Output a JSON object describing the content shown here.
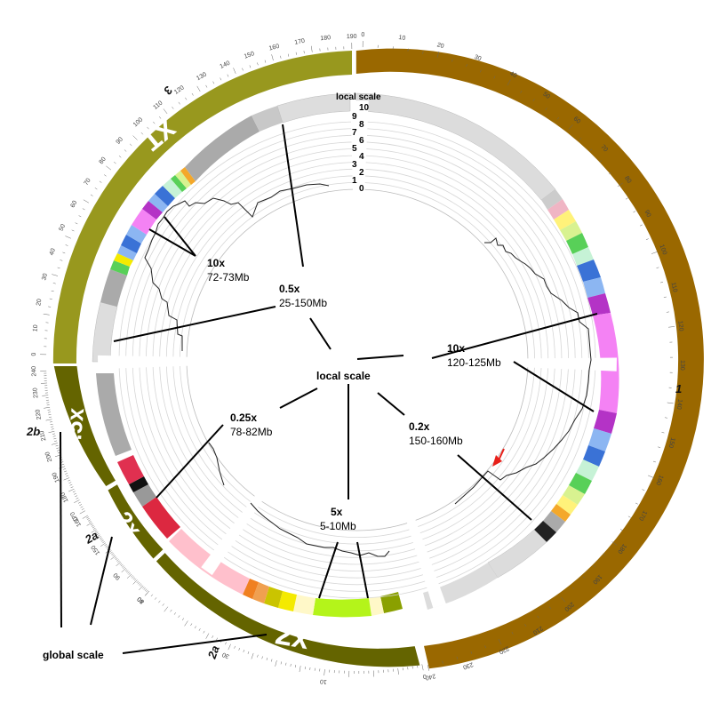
{
  "chromosomes": [
    {
      "id": "1",
      "label": "1"
    },
    {
      "id": "2a",
      "label": "2a"
    },
    {
      "id": "2b",
      "label": "2b"
    },
    {
      "id": "3",
      "label": "3"
    }
  ],
  "segments": [
    {
      "id": "chr1",
      "zoom_label": "1x",
      "color": "#9a6800",
      "chr_label": "1",
      "ticks": [
        "0",
        "10",
        "20",
        "30",
        "40",
        "50",
        "60",
        "70",
        "80",
        "90",
        "100",
        "110",
        "120",
        "130",
        "140",
        "150",
        "160",
        "170",
        "180",
        "190",
        "200",
        "210",
        "220",
        "230",
        "240"
      ]
    },
    {
      "id": "chr2a_main",
      "zoom_label": "2x",
      "color": "#646400",
      "chr_label": "2a",
      "ticks": [
        "0",
        "10",
        "30",
        "40"
      ]
    },
    {
      "id": "chr2a_small",
      "zoom_label": "2x",
      "color": "#646400",
      "chr_label": "2a",
      "ticks": [
        "80",
        "90",
        "150",
        "160"
      ]
    },
    {
      "id": "chr2b",
      "zoom_label": "0.5x",
      "color": "#646400",
      "chr_label": "2b",
      "ticks": [
        "170",
        "180",
        "190",
        "200",
        "210",
        "220",
        "230",
        "240"
      ]
    },
    {
      "id": "chr3",
      "zoom_label": "1x",
      "color": "#98981e",
      "chr_label": "3",
      "ticks": [
        "0",
        "10",
        "20",
        "30",
        "40",
        "50",
        "60",
        "70",
        "80",
        "90",
        "100",
        "110",
        "120",
        "130",
        "140",
        "150",
        "160",
        "170",
        "180",
        "190"
      ]
    }
  ],
  "local_scale_axis": {
    "title": "local scale",
    "ticks": [
      "10",
      "9",
      "8",
      "7",
      "6",
      "5",
      "4",
      "3",
      "2",
      "1",
      "0"
    ]
  },
  "annotations": [
    {
      "id": "ann-10x-left",
      "zoom": "10x",
      "range": "72-73Mb"
    },
    {
      "id": "ann-05x",
      "zoom": "0.5x",
      "range": "25-150Mb"
    },
    {
      "id": "ann-10x-right",
      "zoom": "10x",
      "range": "120-125Mb"
    },
    {
      "id": "ann-025x",
      "zoom": "0.25x",
      "range": "78-82Mb"
    },
    {
      "id": "ann-02x",
      "zoom": "0.2x",
      "range": "150-160Mb"
    },
    {
      "id": "ann-5x",
      "zoom": "5x",
      "range": "5-10Mb"
    }
  ],
  "center_label": "local scale",
  "global_scale_label": "global scale",
  "colors": {
    "chr1": "#9a6800",
    "chr2": "#646400",
    "chr3": "#98981e",
    "highlight_arrow": "#e8201a"
  }
}
